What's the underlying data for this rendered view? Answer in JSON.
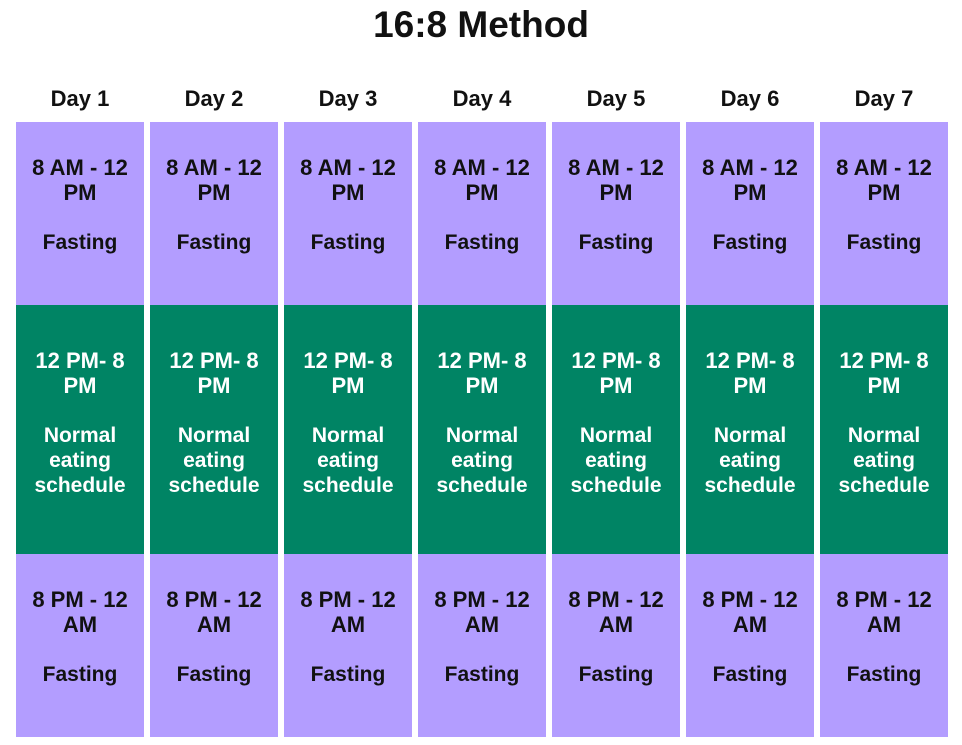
{
  "title": "16:8 Method",
  "colors": {
    "fasting": "#b39dff",
    "eating": "#008464",
    "background": "#ffffff"
  },
  "days": [
    {
      "label": "Day 1",
      "blocks": [
        {
          "type": "fasting",
          "time": "8 AM - 12 PM",
          "label": "Fasting"
        },
        {
          "type": "eating",
          "time": "12 PM- 8 PM",
          "label": "Normal eating schedule"
        },
        {
          "type": "fasting",
          "time": "8 PM - 12 AM",
          "label": "Fasting"
        }
      ]
    },
    {
      "label": "Day 2",
      "blocks": [
        {
          "type": "fasting",
          "time": "8 AM - 12 PM",
          "label": "Fasting"
        },
        {
          "type": "eating",
          "time": "12 PM- 8 PM",
          "label": "Normal eating schedule"
        },
        {
          "type": "fasting",
          "time": "8 PM - 12 AM",
          "label": "Fasting"
        }
      ]
    },
    {
      "label": "Day 3",
      "blocks": [
        {
          "type": "fasting",
          "time": "8 AM - 12 PM",
          "label": "Fasting"
        },
        {
          "type": "eating",
          "time": "12 PM- 8 PM",
          "label": "Normal eating schedule"
        },
        {
          "type": "fasting",
          "time": "8 PM - 12 AM",
          "label": "Fasting"
        }
      ]
    },
    {
      "label": "Day 4",
      "blocks": [
        {
          "type": "fasting",
          "time": "8 AM - 12 PM",
          "label": "Fasting"
        },
        {
          "type": "eating",
          "time": "12 PM- 8 PM",
          "label": "Normal eating schedule"
        },
        {
          "type": "fasting",
          "time": "8 PM - 12 AM",
          "label": "Fasting"
        }
      ]
    },
    {
      "label": "Day 5",
      "blocks": [
        {
          "type": "fasting",
          "time": "8 AM - 12 PM",
          "label": "Fasting"
        },
        {
          "type": "eating",
          "time": "12 PM- 8 PM",
          "label": "Normal eating schedule"
        },
        {
          "type": "fasting",
          "time": "8 PM - 12 AM",
          "label": "Fasting"
        }
      ]
    },
    {
      "label": "Day 6",
      "blocks": [
        {
          "type": "fasting",
          "time": "8 AM - 12 PM",
          "label": "Fasting"
        },
        {
          "type": "eating",
          "time": "12 PM- 8 PM",
          "label": "Normal eating schedule"
        },
        {
          "type": "fasting",
          "time": "8 PM - 12 AM",
          "label": "Fasting"
        }
      ]
    },
    {
      "label": "Day 7",
      "blocks": [
        {
          "type": "fasting",
          "time": "8 AM - 12 PM",
          "label": "Fasting"
        },
        {
          "type": "eating",
          "time": "12 PM- 8 PM",
          "label": "Normal eating schedule"
        },
        {
          "type": "fasting",
          "time": "8 PM - 12 AM",
          "label": "Fasting"
        }
      ]
    }
  ]
}
